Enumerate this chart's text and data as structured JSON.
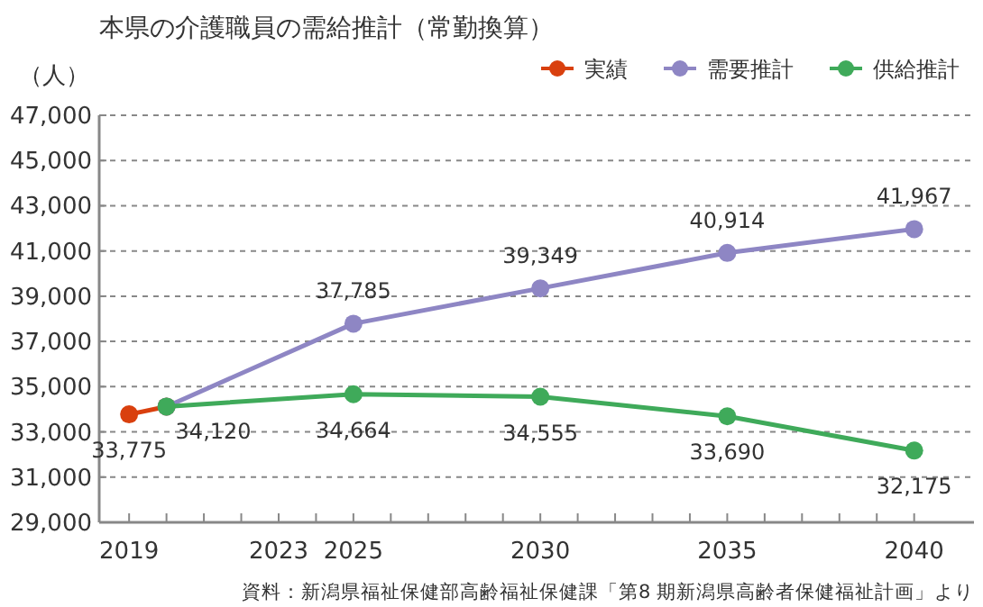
{
  "chart_data": {
    "type": "line",
    "title": "本県の介護職員の需給推計（常勤換算）",
    "ylabel": "（人）",
    "annotations": [
      "資料：新潟県福祉保健部高齢福祉保健課「第8 期新潟県高齢者保健福祉計画」より"
    ],
    "series": [
      {
        "name": "実績",
        "color": "#d9400e",
        "x": [
          2019,
          2020
        ],
        "values": [
          33775,
          34120
        ],
        "value_labels": [
          "33,775",
          "34,120"
        ]
      },
      {
        "name": "需要推計",
        "color": "#8e86c4",
        "x": [
          2020,
          2025,
          2030,
          2035,
          2040
        ],
        "values": [
          34120,
          37785,
          39349,
          40914,
          41967
        ],
        "value_labels": [
          null,
          "37,785",
          "39,349",
          "40,914",
          "41,967"
        ]
      },
      {
        "name": "供給推計",
        "color": "#3faa5a",
        "x": [
          2020,
          2025,
          2030,
          2035,
          2040
        ],
        "values": [
          34120,
          34664,
          34555,
          33690,
          32175
        ],
        "value_labels": [
          null,
          "34,664",
          "34,555",
          "33,690",
          "32,175"
        ]
      }
    ],
    "xlim": [
      2018.2,
      2041.6
    ],
    "xticks": [
      2019,
      {
        "value": 2020,
        "label": null
      },
      {
        "value": 2021,
        "label": null
      },
      {
        "value": 2022,
        "label": null
      },
      2023,
      {
        "value": 2024,
        "label": null
      },
      2025,
      {
        "value": 2026,
        "label": null
      },
      {
        "value": 2027,
        "label": null
      },
      {
        "value": 2028,
        "label": null
      },
      {
        "value": 2029,
        "label": null
      },
      2030,
      {
        "value": 2031,
        "label": null
      },
      {
        "value": 2032,
        "label": null
      },
      {
        "value": 2033,
        "label": null
      },
      {
        "value": 2034,
        "label": null
      },
      2035,
      {
        "value": 2036,
        "label": null
      },
      {
        "value": 2037,
        "label": null
      },
      {
        "value": 2038,
        "label": null
      },
      {
        "value": 2039,
        "label": null
      },
      2040
    ],
    "ylim": [
      29000,
      47000
    ],
    "yticks": [
      {
        "value": 29000,
        "label": "29,000"
      },
      {
        "value": 31000,
        "label": "31,000"
      },
      {
        "value": 33000,
        "label": "33,000"
      },
      {
        "value": 35000,
        "label": "35,000"
      },
      {
        "value": 37000,
        "label": "37,000"
      },
      {
        "value": 39000,
        "label": "39,000"
      },
      {
        "value": 41000,
        "label": "41,000"
      },
      {
        "value": 43000,
        "label": "43,000"
      },
      {
        "value": 45000,
        "label": "45,000"
      },
      {
        "value": 47000,
        "label": "47,000"
      }
    ],
    "grid": "y",
    "legend": "top right",
    "marker": "circle",
    "line_style": "solid"
  }
}
